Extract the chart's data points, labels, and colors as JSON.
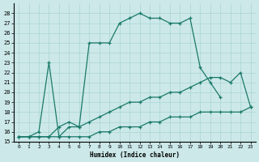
{
  "xlabel": "Humidex (Indice chaleur)",
  "bg_color": "#cce8e8",
  "grid_color": "#aad4d4",
  "line_color": "#1a7a6a",
  "xlim": [
    -0.5,
    23.5
  ],
  "ylim": [
    15,
    29
  ],
  "yticks": [
    15,
    16,
    17,
    18,
    19,
    20,
    21,
    22,
    23,
    24,
    25,
    26,
    27,
    28
  ],
  "xticks": [
    0,
    1,
    2,
    3,
    4,
    5,
    6,
    7,
    8,
    9,
    10,
    11,
    12,
    13,
    14,
    15,
    16,
    17,
    18,
    19,
    20,
    21,
    22,
    23
  ],
  "lines": [
    {
      "x": [
        0,
        1,
        2,
        3,
        4,
        5,
        6,
        7,
        8,
        9,
        10,
        11,
        12,
        13,
        14,
        15,
        16,
        17,
        18,
        19,
        20,
        21
      ],
      "y": [
        15.5,
        15.5,
        16.0,
        23.0,
        15.5,
        16.5,
        16.5,
        25.0,
        25.0,
        25.0,
        27.0,
        27.5,
        28.0,
        27.5,
        27.5,
        27.0,
        27.0,
        27.5,
        22.5,
        21.0,
        19.5,
        null
      ]
    },
    {
      "x": [
        0,
        1,
        2,
        3,
        4,
        5,
        6,
        7,
        8,
        9,
        10,
        11,
        12,
        13,
        14,
        15,
        16,
        17,
        18,
        19,
        20,
        21,
        22,
        23
      ],
      "y": [
        15.5,
        15.5,
        15.5,
        15.5,
        16.5,
        17.0,
        16.5,
        17.0,
        17.5,
        18.0,
        18.5,
        19.0,
        19.0,
        19.5,
        19.5,
        20.0,
        20.0,
        20.5,
        21.0,
        21.5,
        21.5,
        21.0,
        22.0,
        18.5
      ]
    },
    {
      "x": [
        0,
        1,
        2,
        3,
        4,
        5,
        6,
        7,
        8,
        9,
        10,
        11,
        12,
        13,
        14,
        15,
        16,
        17,
        18,
        19,
        20,
        21,
        22,
        23
      ],
      "y": [
        15.5,
        15.5,
        15.5,
        15.5,
        15.5,
        15.5,
        15.5,
        15.5,
        16.0,
        16.0,
        16.5,
        16.5,
        16.5,
        17.0,
        17.0,
        17.5,
        17.5,
        17.5,
        18.0,
        18.0,
        18.0,
        18.0,
        18.0,
        18.5
      ]
    }
  ]
}
